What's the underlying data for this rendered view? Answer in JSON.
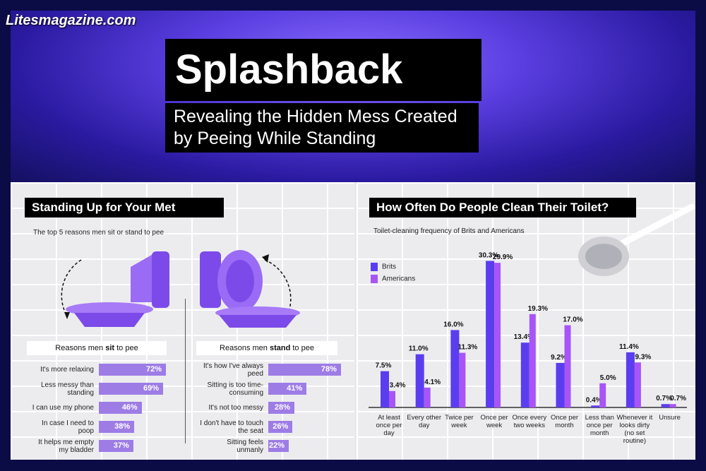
{
  "site": "Litesmagazine.com",
  "title": "Splashback",
  "subtitle": "Revealing the Hidden Mess Created by Peeing While Standing",
  "colors": {
    "brits": "#5b3df0",
    "americans": "#a855f7",
    "bar": "#9d7ce6"
  },
  "left": {
    "heading": "Standing Up for Your Met",
    "subheading": "The top 5 reasons men sit or stand to pee",
    "sit": {
      "caption_pre": "Reasons men ",
      "caption_bold": "sit",
      "caption_post": " to pee",
      "items": [
        {
          "label": "It's more relaxing",
          "value": 72,
          "text": "72%"
        },
        {
          "label": "Less messy than standing",
          "value": 69,
          "text": "69%"
        },
        {
          "label": "I can use my phone",
          "value": 46,
          "text": "46%"
        },
        {
          "label": "In case I need to poop",
          "value": 38,
          "text": "38%"
        },
        {
          "label": "It helps me empty my bladder",
          "value": 37,
          "text": "37%"
        }
      ]
    },
    "stand": {
      "caption_pre": "Reasons men ",
      "caption_bold": "stand",
      "caption_post": " to pee",
      "items": [
        {
          "label": "It's how I've always peed",
          "value": 78,
          "text": "78%"
        },
        {
          "label": "Sitting is too time-consuming",
          "value": 41,
          "text": "41%"
        },
        {
          "label": "It's not too messy",
          "value": 28,
          "text": "28%"
        },
        {
          "label": "I don't have to touch the seat",
          "value": 26,
          "text": "26%"
        },
        {
          "label": "Sitting feels unmanly",
          "value": 22,
          "text": "22%"
        }
      ]
    }
  },
  "right": {
    "heading": "How Often Do People Clean Their Toilet?",
    "subheading": "Toilet-cleaning frequency of Brits and Americans"
  },
  "chart_data": {
    "type": "bar",
    "title": "How Often Do People Clean Their Toilet?",
    "subtitle": "Toilet-cleaning frequency of Brits and Americans",
    "categories": [
      "At least once per day",
      "Every other day",
      "Twice per week",
      "Once per week",
      "Once every two weeks",
      "Once per month",
      "Less than once per month",
      "Whenever it looks dirty (no set routine)",
      "Unsure"
    ],
    "series": [
      {
        "name": "Brits",
        "color": "#5b3df0",
        "values": [
          7.5,
          11.0,
          16.0,
          30.3,
          13.4,
          9.2,
          0.4,
          11.4,
          0.7
        ]
      },
      {
        "name": "Americans",
        "color": "#a855f7",
        "values": [
          3.4,
          4.1,
          11.3,
          29.9,
          19.3,
          17.0,
          5.0,
          9.3,
          0.7
        ]
      }
    ],
    "legend": "top-left",
    "grid": false,
    "unit": "%"
  }
}
